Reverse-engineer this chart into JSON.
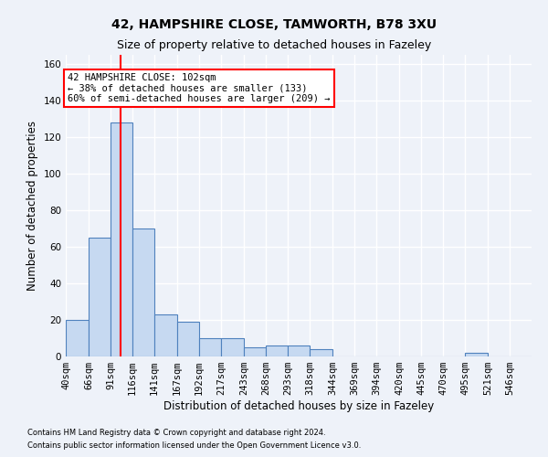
{
  "title_line1": "42, HAMPSHIRE CLOSE, TAMWORTH, B78 3XU",
  "title_line2": "Size of property relative to detached houses in Fazeley",
  "xlabel": "Distribution of detached houses by size in Fazeley",
  "ylabel": "Number of detached properties",
  "bins": [
    40,
    66,
    91,
    116,
    141,
    167,
    192,
    217,
    243,
    268,
    293,
    318,
    344,
    369,
    394,
    420,
    445,
    470,
    495,
    521,
    546
  ],
  "counts": [
    20,
    65,
    128,
    70,
    23,
    19,
    10,
    10,
    5,
    6,
    6,
    4,
    0,
    0,
    0,
    0,
    0,
    0,
    2,
    0,
    0
  ],
  "bar_color": "#c6d9f1",
  "bar_edge_color": "#4f81bd",
  "red_line_x": 102,
  "annotation_line1": "42 HAMPSHIRE CLOSE: 102sqm",
  "annotation_line2": "← 38% of detached houses are smaller (133)",
  "annotation_line3": "60% of semi-detached houses are larger (209) →",
  "annotation_box_color": "white",
  "annotation_box_edge_color": "red",
  "ylim": [
    0,
    165
  ],
  "yticks": [
    0,
    20,
    40,
    60,
    80,
    100,
    120,
    140,
    160
  ],
  "footnote_line1": "Contains HM Land Registry data © Crown copyright and database right 2024.",
  "footnote_line2": "Contains public sector information licensed under the Open Government Licence v3.0.",
  "background_color": "#eef2f9",
  "grid_color": "#ffffff",
  "title_fontsize": 10,
  "subtitle_fontsize": 9,
  "tick_label_fontsize": 7.5,
  "axis_label_fontsize": 8.5,
  "footnote_fontsize": 6.0
}
